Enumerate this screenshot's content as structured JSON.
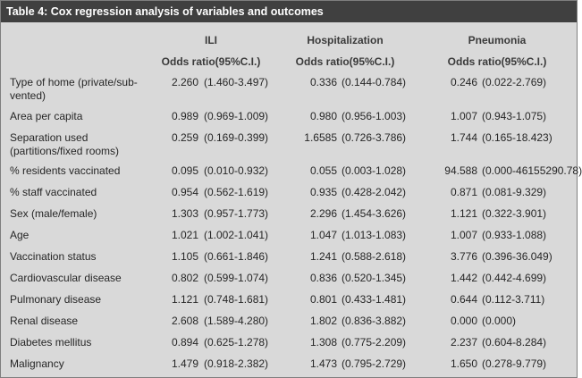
{
  "title": "Table 4: Cox regression analysis of variables and outcomes",
  "columns": [
    {
      "name": "ILI",
      "sub": "Odds ratio(95%C.I.)"
    },
    {
      "name": "Hospitalization",
      "sub": "Odds ratio(95%C.I.)"
    },
    {
      "name": "Pneumonia",
      "sub": "Odds ratio(95%C.I.)"
    }
  ],
  "rows": [
    {
      "label": "Type of home (private/sub-vented)",
      "cells": [
        [
          "2.260",
          "(1.460-3.497)"
        ],
        [
          "0.336",
          "(0.144-0.784)"
        ],
        [
          "0.246",
          "(0.022-2.769)"
        ]
      ]
    },
    {
      "label": "Area per capita",
      "cells": [
        [
          "0.989",
          "(0.969-1.009)"
        ],
        [
          "0.980",
          "(0.956-1.003)"
        ],
        [
          "1.007",
          "(0.943-1.075)"
        ]
      ]
    },
    {
      "label": "Separation used (partitions/fixed rooms)",
      "cells": [
        [
          "0.259",
          "(0.169-0.399)"
        ],
        [
          "1.6585",
          "(0.726-3.786)"
        ],
        [
          "1.744",
          "(0.165-18.423)"
        ]
      ]
    },
    {
      "label": "% residents vaccinated",
      "cells": [
        [
          "0.095",
          "(0.010-0.932)"
        ],
        [
          "0.055",
          "(0.003-1.028)"
        ],
        [
          "94.588",
          "(0.000-46155290.78)"
        ]
      ]
    },
    {
      "label": "% staff vaccinated",
      "cells": [
        [
          "0.954",
          "(0.562-1.619)"
        ],
        [
          "0.935",
          "(0.428-2.042)"
        ],
        [
          "0.871",
          "(0.081-9.329)"
        ]
      ]
    },
    {
      "label": "Sex (male/female)",
      "cells": [
        [
          "1.303",
          "(0.957-1.773)"
        ],
        [
          "2.296",
          "(1.454-3.626)"
        ],
        [
          "1.121",
          "(0.322-3.901)"
        ]
      ]
    },
    {
      "label": "Age",
      "cells": [
        [
          "1.021",
          "(1.002-1.041)"
        ],
        [
          "1.047",
          "(1.013-1.083)"
        ],
        [
          "1.007",
          "(0.933-1.088)"
        ]
      ]
    },
    {
      "label": "Vaccination status",
      "cells": [
        [
          "1.105",
          "(0.661-1.846)"
        ],
        [
          "1.241",
          "(0.588-2.618)"
        ],
        [
          "3.776",
          "(0.396-36.049)"
        ]
      ]
    },
    {
      "label": "Cardiovascular disease",
      "cells": [
        [
          "0.802",
          "(0.599-1.074)"
        ],
        [
          "0.836",
          "(0.520-1.345)"
        ],
        [
          "1.442",
          "(0.442-4.699)"
        ]
      ]
    },
    {
      "label": "Pulmonary disease",
      "cells": [
        [
          "1.121",
          "(0.748-1.681)"
        ],
        [
          "0.801",
          "(0.433-1.481)"
        ],
        [
          "0.644",
          "(0.112-3.711)"
        ]
      ]
    },
    {
      "label": "Renal disease",
      "cells": [
        [
          "2.608",
          "(1.589-4.280)"
        ],
        [
          "1.802",
          "(0.836-3.882)"
        ],
        [
          "0.000",
          "(0.000)"
        ]
      ]
    },
    {
      "label": "Diabetes mellitus",
      "cells": [
        [
          "0.894",
          "(0.625-1.278)"
        ],
        [
          "1.308",
          "(0.775-2.209)"
        ],
        [
          "2.237",
          "(0.604-8.284)"
        ]
      ]
    },
    {
      "label": "Malignancy",
      "cells": [
        [
          "1.479",
          "(0.918-2.382)"
        ],
        [
          "1.473",
          "(0.795-2.729)"
        ],
        [
          "1.650",
          "(0.278-9.779)"
        ]
      ]
    }
  ]
}
